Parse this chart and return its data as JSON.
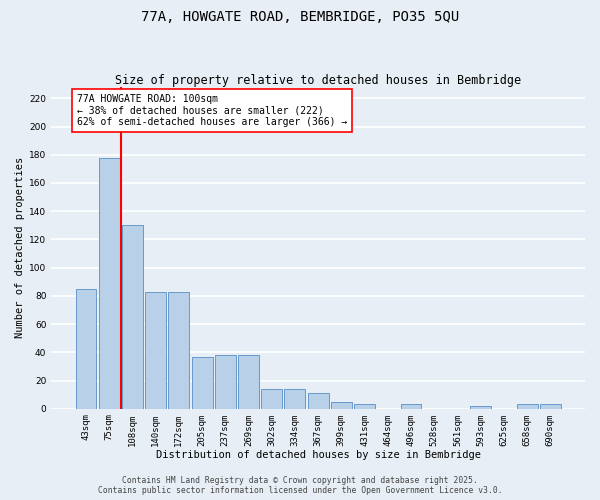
{
  "title": "77A, HOWGATE ROAD, BEMBRIDGE, PO35 5QU",
  "subtitle": "Size of property relative to detached houses in Bembridge",
  "xlabel": "Distribution of detached houses by size in Bembridge",
  "ylabel": "Number of detached properties",
  "categories": [
    "43sqm",
    "75sqm",
    "108sqm",
    "140sqm",
    "172sqm",
    "205sqm",
    "237sqm",
    "269sqm",
    "302sqm",
    "334sqm",
    "367sqm",
    "399sqm",
    "431sqm",
    "464sqm",
    "496sqm",
    "528sqm",
    "561sqm",
    "593sqm",
    "625sqm",
    "658sqm",
    "690sqm"
  ],
  "values": [
    85,
    178,
    130,
    83,
    83,
    37,
    38,
    38,
    14,
    14,
    11,
    5,
    3,
    0,
    3,
    0,
    0,
    2,
    0,
    3,
    3
  ],
  "bar_color": "#b8d0e8",
  "bar_edge_color": "#6699cc",
  "vline_color": "red",
  "vline_x": 1.5,
  "annotation_text": "77A HOWGATE ROAD: 100sqm\n← 38% of detached houses are smaller (222)\n62% of semi-detached houses are larger (366) →",
  "annotation_box_facecolor": "white",
  "annotation_box_edgecolor": "red",
  "ylim": [
    0,
    228
  ],
  "yticks": [
    0,
    20,
    40,
    60,
    80,
    100,
    120,
    140,
    160,
    180,
    200,
    220
  ],
  "bg_color": "#e8eef5",
  "grid_color": "white",
  "footer_line1": "Contains HM Land Registry data © Crown copyright and database right 2025.",
  "footer_line2": "Contains public sector information licensed under the Open Government Licence v3.0.",
  "title_fontsize": 10,
  "subtitle_fontsize": 8.5,
  "xlabel_fontsize": 7.5,
  "ylabel_fontsize": 7.5,
  "tick_fontsize": 6.5,
  "annotation_fontsize": 7,
  "footer_fontsize": 5.8
}
